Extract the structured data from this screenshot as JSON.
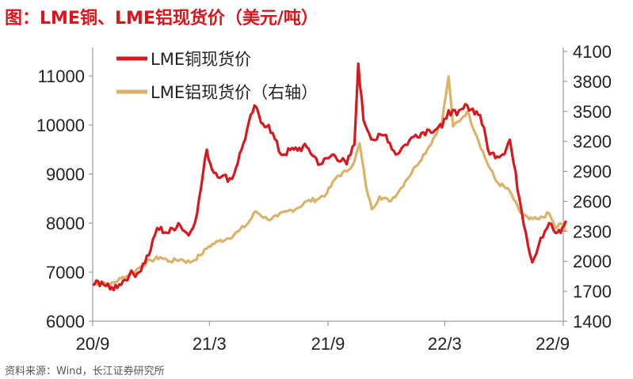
{
  "title": "图：LME铜、LME铝现货价（美元/吨）",
  "source": "资料来源：Wind，长江证券研究所",
  "colors": {
    "copper": "#d7191f",
    "aluminum": "#dbb26a",
    "title": "#e0121a"
  },
  "chart_data": {
    "type": "line",
    "x_tick_labels": [
      "20/9",
      "21/3",
      "21/9",
      "22/3",
      "22/9"
    ],
    "x_ticks": [
      "2020-09",
      "2021-03",
      "2021-09",
      "2022-03",
      "2022-09"
    ],
    "x_range": [
      "2020-09",
      "2022-09"
    ],
    "y_left": {
      "ticks": [
        6000,
        7000,
        8000,
        9000,
        10000,
        11000
      ],
      "range": [
        6000,
        11500
      ]
    },
    "y_right": {
      "ticks": [
        1400,
        1700,
        2000,
        2300,
        2600,
        2900,
        3200,
        3500,
        3800,
        4100
      ],
      "range": [
        1400,
        4100
      ]
    },
    "legend_position": "top-left",
    "series": [
      {
        "name": "LME铜现货价",
        "axis": "left",
        "points": [
          [
            "2020-09-01",
            6750
          ],
          [
            "2020-09-15",
            6800
          ],
          [
            "2020-09-28",
            6650
          ],
          [
            "2020-10-12",
            6750
          ],
          [
            "2020-10-28",
            6950
          ],
          [
            "2020-11-12",
            7000
          ],
          [
            "2020-11-30",
            7450
          ],
          [
            "2020-12-10",
            7900
          ],
          [
            "2020-12-28",
            7800
          ],
          [
            "2021-01-12",
            8000
          ],
          [
            "2021-01-28",
            7750
          ],
          [
            "2021-02-10",
            8200
          ],
          [
            "2021-02-25",
            9500
          ],
          [
            "2021-03-05",
            9100
          ],
          [
            "2021-03-20",
            8950
          ],
          [
            "2021-04-05",
            8900
          ],
          [
            "2021-04-20",
            9500
          ],
          [
            "2021-05-10",
            10400
          ],
          [
            "2021-05-20",
            10050
          ],
          [
            "2021-06-01",
            10000
          ],
          [
            "2021-06-20",
            9400
          ],
          [
            "2021-07-10",
            9500
          ],
          [
            "2021-07-30",
            9550
          ],
          [
            "2021-08-20",
            9200
          ],
          [
            "2021-09-10",
            9400
          ],
          [
            "2021-09-30",
            9200
          ],
          [
            "2021-10-12",
            9600
          ],
          [
            "2021-10-18",
            11250
          ],
          [
            "2021-10-26",
            10100
          ],
          [
            "2021-11-10",
            9700
          ],
          [
            "2021-11-30",
            9800
          ],
          [
            "2021-12-15",
            9400
          ],
          [
            "2021-12-30",
            9600
          ],
          [
            "2022-01-15",
            9800
          ],
          [
            "2022-02-05",
            9900
          ],
          [
            "2022-02-25",
            9950
          ],
          [
            "2022-03-07",
            10300
          ],
          [
            "2022-03-20",
            10200
          ],
          [
            "2022-04-05",
            10400
          ],
          [
            "2022-04-25",
            10200
          ],
          [
            "2022-05-10",
            9400
          ],
          [
            "2022-05-30",
            9400
          ],
          [
            "2022-06-10",
            9700
          ],
          [
            "2022-06-25",
            8500
          ],
          [
            "2022-07-05",
            7800
          ],
          [
            "2022-07-15",
            7200
          ],
          [
            "2022-07-28",
            7700
          ],
          [
            "2022-08-10",
            8000
          ],
          [
            "2022-08-20",
            7800
          ],
          [
            "2022-08-28",
            7800
          ],
          [
            "2022-09-05",
            8050
          ]
        ]
      },
      {
        "name": "LME铝现货价（右轴）",
        "axis": "right",
        "points": [
          [
            "2020-09-01",
            1760
          ],
          [
            "2020-09-15",
            1800
          ],
          [
            "2020-09-28",
            1760
          ],
          [
            "2020-10-15",
            1830
          ],
          [
            "2020-10-30",
            1870
          ],
          [
            "2020-11-15",
            1950
          ],
          [
            "2020-11-30",
            2010
          ],
          [
            "2020-12-15",
            2040
          ],
          [
            "2020-12-30",
            2000
          ],
          [
            "2021-01-15",
            2020
          ],
          [
            "2021-01-30",
            1990
          ],
          [
            "2021-02-15",
            2060
          ],
          [
            "2021-02-28",
            2150
          ],
          [
            "2021-03-15",
            2200
          ],
          [
            "2021-03-30",
            2230
          ],
          [
            "2021-04-15",
            2300
          ],
          [
            "2021-04-30",
            2380
          ],
          [
            "2021-05-12",
            2500
          ],
          [
            "2021-05-30",
            2420
          ],
          [
            "2021-06-15",
            2450
          ],
          [
            "2021-06-30",
            2500
          ],
          [
            "2021-07-15",
            2530
          ],
          [
            "2021-07-30",
            2600
          ],
          [
            "2021-08-15",
            2620
          ],
          [
            "2021-08-30",
            2680
          ],
          [
            "2021-09-15",
            2850
          ],
          [
            "2021-09-30",
            2900
          ],
          [
            "2021-10-12",
            3000
          ],
          [
            "2021-10-20",
            3180
          ],
          [
            "2021-10-30",
            2750
          ],
          [
            "2021-11-08",
            2520
          ],
          [
            "2021-11-20",
            2650
          ],
          [
            "2021-12-05",
            2600
          ],
          [
            "2021-12-20",
            2700
          ],
          [
            "2021-12-30",
            2800
          ],
          [
            "2022-01-15",
            2950
          ],
          [
            "2022-02-05",
            3150
          ],
          [
            "2022-02-25",
            3400
          ],
          [
            "2022-03-07",
            3850
          ],
          [
            "2022-03-14",
            3350
          ],
          [
            "2022-03-30",
            3450
          ],
          [
            "2022-04-05",
            3500
          ],
          [
            "2022-04-20",
            3250
          ],
          [
            "2022-05-05",
            3000
          ],
          [
            "2022-05-20",
            2800
          ],
          [
            "2022-06-10",
            2700
          ],
          [
            "2022-06-25",
            2500
          ],
          [
            "2022-07-10",
            2420
          ],
          [
            "2022-07-25",
            2420
          ],
          [
            "2022-08-10",
            2480
          ],
          [
            "2022-08-20",
            2330
          ],
          [
            "2022-08-28",
            2380
          ],
          [
            "2022-09-05",
            2300
          ]
        ]
      }
    ]
  }
}
